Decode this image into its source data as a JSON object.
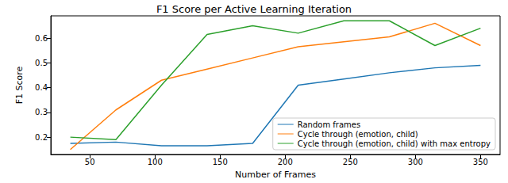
{
  "chart_data": {
    "type": "line",
    "title": "F1 Score per Active Learning Iteration",
    "x_label": "Number of Frames",
    "y_label": "F1 Score",
    "x": [
      35,
      70,
      105,
      140,
      175,
      210,
      245,
      280,
      315,
      350
    ],
    "series": [
      {
        "name": "Random frames",
        "color": "#1f77b4",
        "values": [
          0.175,
          0.18,
          0.165,
          0.165,
          0.175,
          0.41,
          0.435,
          0.46,
          0.48,
          0.49
        ]
      },
      {
        "name": "Cycle through (emotion, child)",
        "color": "#ff7f0e",
        "values": [
          0.15,
          0.31,
          0.43,
          0.475,
          0.52,
          0.565,
          0.585,
          0.605,
          0.66,
          0.57
        ]
      },
      {
        "name": "Cycle through (emotion, child) with max entropy",
        "color": "#2ca02c",
        "values": [
          0.2,
          0.19,
          0.41,
          0.615,
          0.65,
          0.62,
          0.67,
          0.67,
          0.57,
          0.64
        ]
      }
    ],
    "xlim": [
      20,
      365
    ],
    "xticks": [
      50,
      100,
      150,
      200,
      250,
      300,
      350
    ],
    "ylim": [
      0.13,
      0.69
    ],
    "yticks": [
      0.2,
      0.3,
      0.4,
      0.5,
      0.6
    ],
    "grid": false,
    "legend": "lower right"
  }
}
